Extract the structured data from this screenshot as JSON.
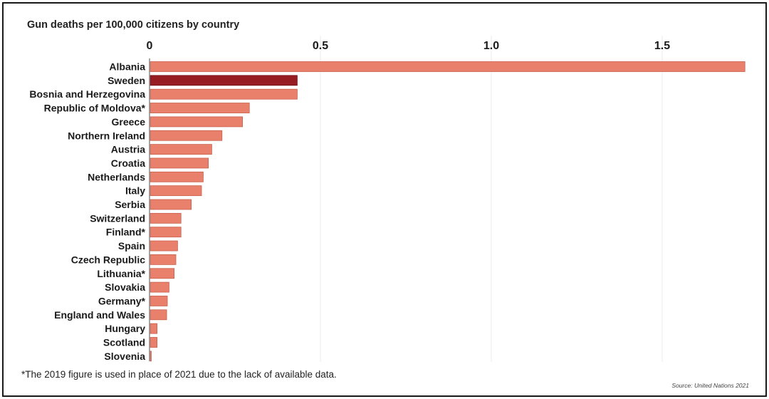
{
  "chart_data": {
    "type": "bar",
    "orientation": "horizontal",
    "title": "Gun deaths per 100,000 citizens by country",
    "xlim": [
      0,
      1.75
    ],
    "x_ticks": [
      "0",
      "0.5",
      "1.0",
      "1.5"
    ],
    "x_tick_values": [
      0,
      0.5,
      1.0,
      1.5
    ],
    "grid": "vertical",
    "categories": [
      "Albania",
      "Sweden",
      "Bosnia and Herzegovina",
      "Republic of Moldova*",
      "Greece",
      "Northern Ireland",
      "Austria",
      "Croatia",
      "Netherlands",
      "Italy",
      "Serbia",
      "Switzerland",
      "Finland*",
      "Spain",
      "Czech Republic",
      "Lithuania*",
      "Slovakia",
      "Germany*",
      "England and Wales",
      "Hungary",
      "Scotland",
      "Slovenia"
    ],
    "values": [
      1.74,
      0.43,
      0.43,
      0.29,
      0.27,
      0.21,
      0.18,
      0.17,
      0.155,
      0.15,
      0.12,
      0.09,
      0.09,
      0.08,
      0.075,
      0.07,
      0.055,
      0.05,
      0.048,
      0.02,
      0.02,
      0.003
    ],
    "highlight": "Sweden",
    "colors": {
      "bar": "#e8806c",
      "bar_edge": "#c9604c",
      "highlight": "#961d22",
      "highlight_edge": "#6e1015",
      "grid": "#eeeeee",
      "axis": "#888888",
      "text": "#1a1a1a"
    }
  },
  "footnote": "*The 2019 figure is used in place of 2021 due to the lack of available data.",
  "source": "Source: United Nations 2021"
}
